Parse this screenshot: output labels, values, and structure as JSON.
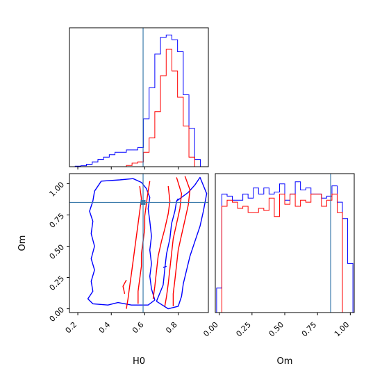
{
  "chart_data": [
    {
      "panel": "H0 marginal",
      "type": "histogram",
      "xlim": [
        0.15,
        0.98
      ],
      "bins": [
        0.15,
        0.184,
        0.218,
        0.252,
        0.286,
        0.32,
        0.354,
        0.388,
        0.422,
        0.456,
        0.49,
        0.524,
        0.558,
        0.592,
        0.626,
        0.66,
        0.694,
        0.728,
        0.762,
        0.796,
        0.83,
        0.864,
        0.898,
        0.932,
        0.966,
        1.0
      ],
      "truth_line": 0.59,
      "series": [
        {
          "color": "#0000ff",
          "counts": [
            0,
            0.2,
            0.4,
            1,
            2,
            3,
            4,
            5,
            6,
            6,
            7,
            7,
            8,
            20,
            33,
            47,
            54,
            55,
            53,
            48,
            30,
            16,
            3,
            0,
            0
          ]
        },
        {
          "color": "#ff0000",
          "counts": [
            0,
            0,
            0,
            0,
            0,
            0,
            0,
            0,
            0,
            0,
            0.5,
            1.5,
            2,
            6,
            12,
            23,
            38,
            49,
            40,
            29,
            17,
            4,
            0,
            0,
            0
          ]
        }
      ],
      "ticks": [
        0.2,
        0.4,
        0.6,
        0.8
      ]
    },
    {
      "panel": "Om marginal",
      "type": "histogram",
      "xlim": [
        -0.03,
        1.03
      ],
      "bins": [
        -0.02,
        0.02,
        0.06,
        0.1,
        0.14,
        0.18,
        0.22,
        0.26,
        0.3,
        0.34,
        0.38,
        0.42,
        0.46,
        0.5,
        0.54,
        0.58,
        0.62,
        0.66,
        0.7,
        0.74,
        0.78,
        0.82,
        0.86,
        0.9,
        0.94,
        0.98,
        1.02
      ],
      "truth_line": 0.85,
      "series": [
        {
          "color": "#0000ff",
          "counts": [
            12,
            58,
            57,
            55,
            55,
            58,
            56,
            61,
            58,
            61,
            58,
            59,
            63,
            55,
            58,
            64,
            60,
            61,
            58,
            58,
            56,
            57,
            62,
            54,
            46,
            24
          ]
        },
        {
          "color": "#ff0000",
          "counts": [
            0,
            52,
            55,
            54,
            51,
            52,
            49,
            49,
            51,
            50,
            56,
            47,
            58,
            53,
            58,
            52,
            55,
            54,
            58,
            58,
            52,
            55,
            58,
            49,
            0,
            0
          ]
        }
      ],
      "ticks": [
        0.0,
        0.25,
        0.5,
        0.75,
        1.0
      ],
      "tick_labels": [
        "0.00",
        "0.25",
        "0.50",
        "0.75",
        "1.00"
      ],
      "xlabel": "Om"
    },
    {
      "panel": "H0 vs Om joint",
      "type": "contour",
      "xlim": [
        0.15,
        0.98
      ],
      "ylim": [
        -0.03,
        1.08
      ],
      "xlabel": "H0",
      "ylabel": "Om",
      "x_ticks": [
        0.2,
        0.4,
        0.6,
        0.8
      ],
      "y_ticks": [
        0.0,
        0.25,
        0.5,
        0.75,
        1.0
      ],
      "y_tick_labels": [
        "0.00",
        "0.25",
        "0.50",
        "0.75",
        "1.00"
      ],
      "truth": {
        "H0": 0.59,
        "Om": 0.85
      },
      "contours": [
        {
          "color": "#0000ff",
          "points": [
            [
              0.34,
              1.02
            ],
            [
              0.45,
              1.03
            ],
            [
              0.53,
              1.04
            ],
            [
              0.58,
              1.01
            ],
            [
              0.61,
              0.96
            ],
            [
              0.63,
              0.89
            ],
            [
              0.62,
              0.8
            ],
            [
              0.63,
              0.7
            ],
            [
              0.64,
              0.58
            ],
            [
              0.63,
              0.47
            ],
            [
              0.64,
              0.36
            ],
            [
              0.63,
              0.26
            ],
            [
              0.64,
              0.16
            ],
            [
              0.66,
              0.07
            ],
            [
              0.62,
              0.03
            ],
            [
              0.52,
              0.03
            ],
            [
              0.44,
              0.05
            ],
            [
              0.38,
              0.03
            ],
            [
              0.29,
              0.04
            ],
            [
              0.26,
              0.08
            ],
            [
              0.29,
              0.14
            ],
            [
              0.28,
              0.22
            ],
            [
              0.3,
              0.31
            ],
            [
              0.28,
              0.4
            ],
            [
              0.3,
              0.5
            ],
            [
              0.28,
              0.6
            ],
            [
              0.29,
              0.7
            ],
            [
              0.27,
              0.78
            ],
            [
              0.29,
              0.86
            ],
            [
              0.3,
              0.94
            ],
            [
              0.34,
              1.02
            ]
          ]
        },
        {
          "color": "#0000ff",
          "points": [
            [
              0.67,
              0.06
            ],
            [
              0.71,
              0.19
            ],
            [
              0.72,
              0.32
            ],
            [
              0.73,
              0.44
            ],
            [
              0.75,
              0.56
            ],
            [
              0.76,
              0.68
            ],
            [
              0.78,
              0.78
            ],
            [
              0.79,
              0.86
            ],
            [
              0.82,
              0.89
            ],
            [
              0.86,
              0.93
            ],
            [
              0.9,
              0.99
            ],
            [
              0.93,
              1.05
            ],
            [
              0.97,
              0.92
            ],
            [
              0.95,
              0.78
            ],
            [
              0.93,
              0.66
            ],
            [
              0.9,
              0.54
            ],
            [
              0.87,
              0.42
            ],
            [
              0.85,
              0.31
            ],
            [
              0.83,
              0.2
            ],
            [
              0.82,
              0.1
            ],
            [
              0.8,
              0.02
            ],
            [
              0.74,
              0.0
            ],
            [
              0.67,
              0.06
            ]
          ]
        },
        {
          "color": "#0000ff",
          "points": [
            [
              0.79,
              0.86
            ],
            [
              0.8,
              0.88
            ]
          ]
        },
        {
          "color": "#0000ff",
          "points": [
            [
              0.71,
              0.33
            ],
            [
              0.73,
              0.34
            ]
          ]
        },
        {
          "color": "#ff0000",
          "points": [
            [
              0.57,
              0.98
            ],
            [
              0.58,
              0.88
            ],
            [
              0.57,
              0.78
            ],
            [
              0.56,
              0.68
            ],
            [
              0.55,
              0.58
            ],
            [
              0.54,
              0.48
            ],
            [
              0.53,
              0.38
            ],
            [
              0.52,
              0.28
            ],
            [
              0.51,
              0.18
            ],
            [
              0.5,
              0.08
            ],
            [
              0.49,
              0.0
            ]
          ]
        },
        {
          "color": "#ff0000",
          "points": [
            [
              0.63,
              1.02
            ],
            [
              0.62,
              0.94
            ],
            [
              0.61,
              0.84
            ],
            [
              0.6,
              0.74
            ],
            [
              0.6,
              0.64
            ],
            [
              0.59,
              0.54
            ],
            [
              0.58,
              0.44
            ],
            [
              0.58,
              0.34
            ],
            [
              0.57,
              0.24
            ],
            [
              0.56,
              0.14
            ],
            [
              0.56,
              0.04
            ]
          ]
        },
        {
          "color": "#ff0000",
          "points": [
            [
              0.74,
              0.98
            ],
            [
              0.75,
              0.86
            ],
            [
              0.74,
              0.76
            ],
            [
              0.72,
              0.64
            ],
            [
              0.7,
              0.54
            ],
            [
              0.68,
              0.42
            ],
            [
              0.67,
              0.3
            ],
            [
              0.66,
              0.18
            ],
            [
              0.65,
              0.08
            ]
          ]
        },
        {
          "color": "#ff0000",
          "points": [
            [
              0.79,
              1.05
            ],
            [
              0.82,
              0.92
            ],
            [
              0.81,
              0.8
            ],
            [
              0.79,
              0.68
            ],
            [
              0.77,
              0.56
            ],
            [
              0.76,
              0.44
            ],
            [
              0.75,
              0.32
            ],
            [
              0.74,
              0.2
            ],
            [
              0.73,
              0.1
            ],
            [
              0.72,
              0.02
            ]
          ]
        },
        {
          "color": "#ff0000",
          "points": [
            [
              0.84,
              1.06
            ],
            [
              0.87,
              0.95
            ],
            [
              0.86,
              0.83
            ],
            [
              0.84,
              0.71
            ],
            [
              0.82,
              0.59
            ],
            [
              0.8,
              0.47
            ],
            [
              0.79,
              0.35
            ],
            [
              0.78,
              0.23
            ],
            [
              0.77,
              0.12
            ],
            [
              0.77,
              0.02
            ]
          ]
        },
        {
          "color": "#ff0000",
          "points": [
            [
              0.48,
              0.12
            ],
            [
              0.47,
              0.18
            ],
            [
              0.49,
              0.23
            ]
          ]
        }
      ]
    }
  ]
}
